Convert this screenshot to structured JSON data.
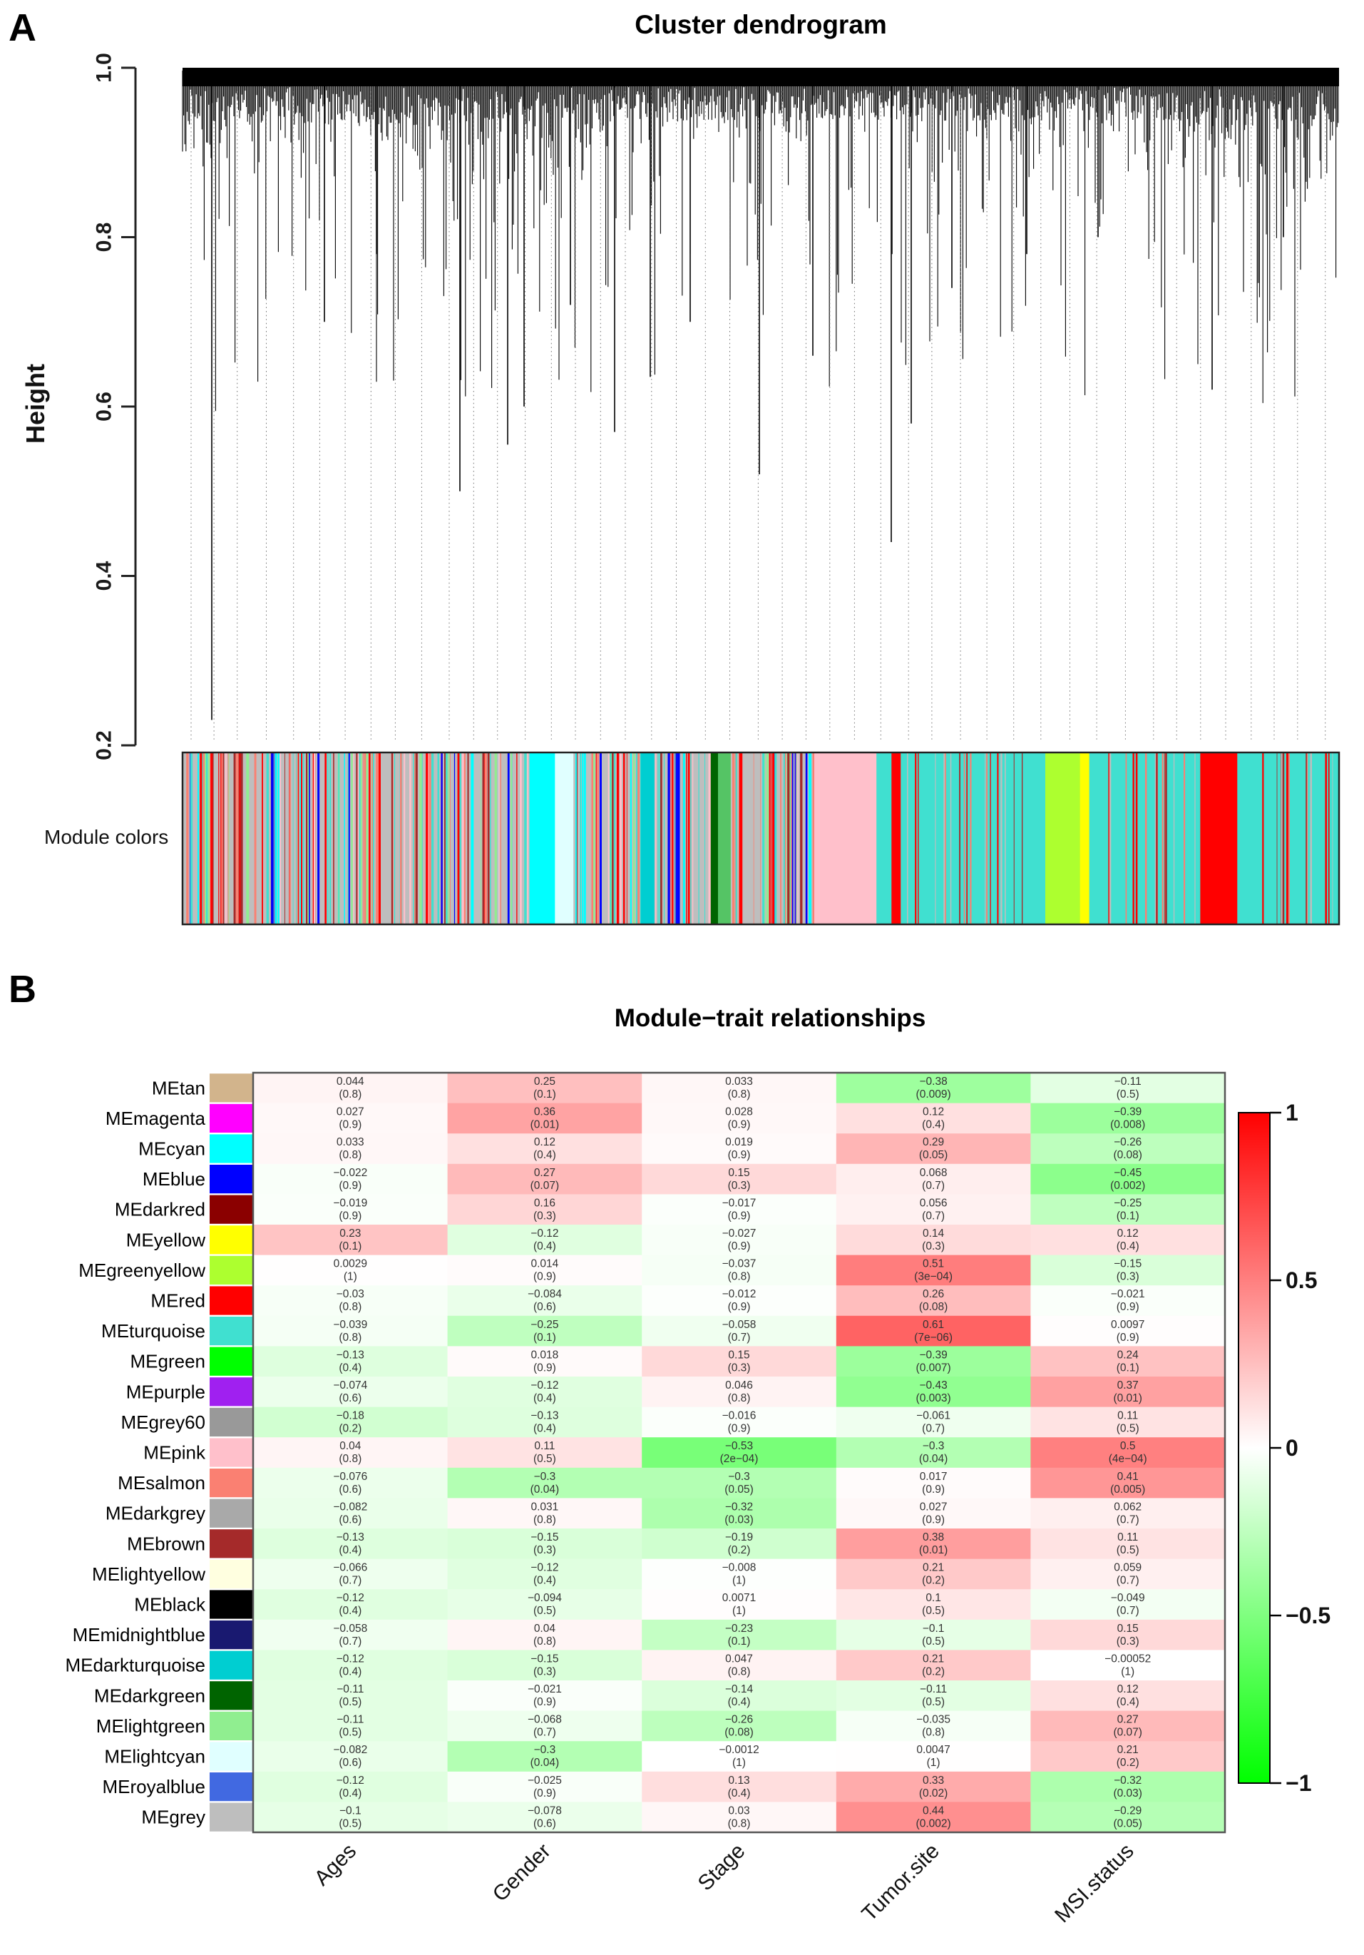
{
  "chart_data": [
    {
      "type": "dendrogram",
      "panel_label": "A",
      "title": "Cluster dendrogram",
      "ylabel": "Height",
      "ylim": [
        0.2,
        1.0
      ],
      "ytick_labels": [
        "1.0",
        "0.8",
        "0.6",
        "0.4",
        "0.2"
      ],
      "description": "Dense gene hierarchical-clustering tree; most merge heights lie between 0.85 and 1.0, deepest single branches reach about 0.23 and 0.44; dotted vertical leader lines extend to the 0.2 baseline.",
      "module_colors_bar": {
        "label": "Module colors",
        "segments": [
          {
            "from": 0.0,
            "to": 0.3,
            "color": "#BEBEBE"
          },
          {
            "from": 0.3,
            "to": 0.322,
            "color": "#00FFFF"
          },
          {
            "from": 0.322,
            "to": 0.338,
            "color": "#E0FFFF"
          },
          {
            "from": 0.338,
            "to": 0.396,
            "color": "#BEBEBE"
          },
          {
            "from": 0.396,
            "to": 0.408,
            "color": "#00CED1"
          },
          {
            "from": 0.408,
            "to": 0.455,
            "color": "#BEBEBE"
          },
          {
            "from": 0.455,
            "to": 0.463,
            "color": "#006400"
          },
          {
            "from": 0.463,
            "to": 0.474,
            "color": "#55C465"
          },
          {
            "from": 0.474,
            "to": 0.545,
            "color": "#BEBEBE"
          },
          {
            "from": 0.545,
            "to": 0.6,
            "color": "#FFC0CB"
          },
          {
            "from": 0.6,
            "to": 0.613,
            "color": "#40E0D0"
          },
          {
            "from": 0.613,
            "to": 0.621,
            "color": "#FF0000"
          },
          {
            "from": 0.621,
            "to": 0.746,
            "color": "#40E0D0"
          },
          {
            "from": 0.746,
            "to": 0.776,
            "color": "#ADFF2F"
          },
          {
            "from": 0.776,
            "to": 0.784,
            "color": "#FFFF00"
          },
          {
            "from": 0.784,
            "to": 0.88,
            "color": "#40E0D0"
          },
          {
            "from": 0.88,
            "to": 0.912,
            "color": "#FF0000"
          },
          {
            "from": 0.912,
            "to": 1.0,
            "color": "#40E0D0"
          }
        ]
      }
    },
    {
      "type": "heatmap",
      "panel_label": "B",
      "title": "Module−trait relationships",
      "categories": [
        "Ages",
        "Gender",
        "Stage",
        "Tumor.site",
        "MSI.status"
      ],
      "colorbar": {
        "max": 1,
        "min": -1,
        "tick_labels": [
          "1",
          "0.5",
          "0",
          "−0.5",
          "−1"
        ],
        "high": "#FF0000",
        "mid": "#FFFFFF",
        "low": "#00FF00"
      },
      "rows": [
        {
          "module": "MEtan",
          "swatch": "#D2B48C",
          "cells": [
            {
              "cor": "0.044",
              "p": "(0.8)"
            },
            {
              "cor": "0.25",
              "p": "(0.1)"
            },
            {
              "cor": "0.033",
              "p": "(0.8)"
            },
            {
              "cor": "−0.38",
              "p": "(0.009)"
            },
            {
              "cor": "−0.11",
              "p": "(0.5)"
            }
          ]
        },
        {
          "module": "MEmagenta",
          "swatch": "#FF00FF",
          "cells": [
            {
              "cor": "0.027",
              "p": "(0.9)"
            },
            {
              "cor": "0.36",
              "p": "(0.01)"
            },
            {
              "cor": "0.028",
              "p": "(0.9)"
            },
            {
              "cor": "0.12",
              "p": "(0.4)"
            },
            {
              "cor": "−0.39",
              "p": "(0.008)"
            }
          ]
        },
        {
          "module": "MEcyan",
          "swatch": "#00FFFF",
          "cells": [
            {
              "cor": "0.033",
              "p": "(0.8)"
            },
            {
              "cor": "0.12",
              "p": "(0.4)"
            },
            {
              "cor": "0.019",
              "p": "(0.9)"
            },
            {
              "cor": "0.29",
              "p": "(0.05)"
            },
            {
              "cor": "−0.26",
              "p": "(0.08)"
            }
          ]
        },
        {
          "module": "MEblue",
          "swatch": "#0000FF",
          "cells": [
            {
              "cor": "−0.022",
              "p": "(0.9)"
            },
            {
              "cor": "0.27",
              "p": "(0.07)"
            },
            {
              "cor": "0.15",
              "p": "(0.3)"
            },
            {
              "cor": "0.068",
              "p": "(0.7)"
            },
            {
              "cor": "−0.45",
              "p": "(0.002)"
            }
          ]
        },
        {
          "module": "MEdarkred",
          "swatch": "#8B0000",
          "cells": [
            {
              "cor": "−0.019",
              "p": "(0.9)"
            },
            {
              "cor": "0.16",
              "p": "(0.3)"
            },
            {
              "cor": "−0.017",
              "p": "(0.9)"
            },
            {
              "cor": "0.056",
              "p": "(0.7)"
            },
            {
              "cor": "−0.25",
              "p": "(0.1)"
            }
          ]
        },
        {
          "module": "MEyellow",
          "swatch": "#FFFF00",
          "cells": [
            {
              "cor": "0.23",
              "p": "(0.1)"
            },
            {
              "cor": "−0.12",
              "p": "(0.4)"
            },
            {
              "cor": "−0.027",
              "p": "(0.9)"
            },
            {
              "cor": "0.14",
              "p": "(0.3)"
            },
            {
              "cor": "0.12",
              "p": "(0.4)"
            }
          ]
        },
        {
          "module": "MEgreenyellow",
          "swatch": "#ADFF2F",
          "cells": [
            {
              "cor": "0.0029",
              "p": "(1)"
            },
            {
              "cor": "0.014",
              "p": "(0.9)"
            },
            {
              "cor": "−0.037",
              "p": "(0.8)"
            },
            {
              "cor": "0.51",
              "p": "(3e−04)"
            },
            {
              "cor": "−0.15",
              "p": "(0.3)"
            }
          ]
        },
        {
          "module": "MEred",
          "swatch": "#FF0000",
          "cells": [
            {
              "cor": "−0.03",
              "p": "(0.8)"
            },
            {
              "cor": "−0.084",
              "p": "(0.6)"
            },
            {
              "cor": "−0.012",
              "p": "(0.9)"
            },
            {
              "cor": "0.26",
              "p": "(0.08)"
            },
            {
              "cor": "−0.021",
              "p": "(0.9)"
            }
          ]
        },
        {
          "module": "MEturquoise",
          "swatch": "#40E0D0",
          "cells": [
            {
              "cor": "−0.039",
              "p": "(0.8)"
            },
            {
              "cor": "−0.25",
              "p": "(0.1)"
            },
            {
              "cor": "−0.058",
              "p": "(0.7)"
            },
            {
              "cor": "0.61",
              "p": "(7e−06)"
            },
            {
              "cor": "0.0097",
              "p": "(0.9)"
            }
          ]
        },
        {
          "module": "MEgreen",
          "swatch": "#00FF00",
          "cells": [
            {
              "cor": "−0.13",
              "p": "(0.4)"
            },
            {
              "cor": "0.018",
              "p": "(0.9)"
            },
            {
              "cor": "0.15",
              "p": "(0.3)"
            },
            {
              "cor": "−0.39",
              "p": "(0.007)"
            },
            {
              "cor": "0.24",
              "p": "(0.1)"
            }
          ]
        },
        {
          "module": "MEpurple",
          "swatch": "#A020F0",
          "cells": [
            {
              "cor": "−0.074",
              "p": "(0.6)"
            },
            {
              "cor": "−0.12",
              "p": "(0.4)"
            },
            {
              "cor": "0.046",
              "p": "(0.8)"
            },
            {
              "cor": "−0.43",
              "p": "(0.003)"
            },
            {
              "cor": "0.37",
              "p": "(0.01)"
            }
          ]
        },
        {
          "module": "MEgrey60",
          "swatch": "#999999",
          "cells": [
            {
              "cor": "−0.18",
              "p": "(0.2)"
            },
            {
              "cor": "−0.13",
              "p": "(0.4)"
            },
            {
              "cor": "−0.016",
              "p": "(0.9)"
            },
            {
              "cor": "−0.061",
              "p": "(0.7)"
            },
            {
              "cor": "0.11",
              "p": "(0.5)"
            }
          ]
        },
        {
          "module": "MEpink",
          "swatch": "#FFC0CB",
          "cells": [
            {
              "cor": "0.04",
              "p": "(0.8)"
            },
            {
              "cor": "0.11",
              "p": "(0.5)"
            },
            {
              "cor": "−0.53",
              "p": "(2e−04)"
            },
            {
              "cor": "−0.3",
              "p": "(0.04)"
            },
            {
              "cor": "0.5",
              "p": "(4e−04)"
            }
          ]
        },
        {
          "module": "MEsalmon",
          "swatch": "#FA8072",
          "cells": [
            {
              "cor": "−0.076",
              "p": "(0.6)"
            },
            {
              "cor": "−0.3",
              "p": "(0.04)"
            },
            {
              "cor": "−0.3",
              "p": "(0.05)"
            },
            {
              "cor": "0.017",
              "p": "(0.9)"
            },
            {
              "cor": "0.41",
              "p": "(0.005)"
            }
          ]
        },
        {
          "module": "MEdarkgrey",
          "swatch": "#A9A9A9",
          "cells": [
            {
              "cor": "−0.082",
              "p": "(0.6)"
            },
            {
              "cor": "0.031",
              "p": "(0.8)"
            },
            {
              "cor": "−0.32",
              "p": "(0.03)"
            },
            {
              "cor": "0.027",
              "p": "(0.9)"
            },
            {
              "cor": "0.062",
              "p": "(0.7)"
            }
          ]
        },
        {
          "module": "MEbrown",
          "swatch": "#A52A2A",
          "cells": [
            {
              "cor": "−0.13",
              "p": "(0.4)"
            },
            {
              "cor": "−0.15",
              "p": "(0.3)"
            },
            {
              "cor": "−0.19",
              "p": "(0.2)"
            },
            {
              "cor": "0.38",
              "p": "(0.01)"
            },
            {
              "cor": "0.11",
              "p": "(0.5)"
            }
          ]
        },
        {
          "module": "MElightyellow",
          "swatch": "#FFFFE0",
          "cells": [
            {
              "cor": "−0.066",
              "p": "(0.7)"
            },
            {
              "cor": "−0.12",
              "p": "(0.4)"
            },
            {
              "cor": "−0.008",
              "p": "(1)"
            },
            {
              "cor": "0.21",
              "p": "(0.2)"
            },
            {
              "cor": "0.059",
              "p": "(0.7)"
            }
          ]
        },
        {
          "module": "MEblack",
          "swatch": "#000000",
          "cells": [
            {
              "cor": "−0.12",
              "p": "(0.4)"
            },
            {
              "cor": "−0.094",
              "p": "(0.5)"
            },
            {
              "cor": "0.0071",
              "p": "(1)"
            },
            {
              "cor": "0.1",
              "p": "(0.5)"
            },
            {
              "cor": "−0.049",
              "p": "(0.7)"
            }
          ]
        },
        {
          "module": "MEmidnightblue",
          "swatch": "#191970",
          "cells": [
            {
              "cor": "−0.058",
              "p": "(0.7)"
            },
            {
              "cor": "0.04",
              "p": "(0.8)"
            },
            {
              "cor": "−0.23",
              "p": "(0.1)"
            },
            {
              "cor": "−0.1",
              "p": "(0.5)"
            },
            {
              "cor": "0.15",
              "p": "(0.3)"
            }
          ]
        },
        {
          "module": "MEdarkturquoise",
          "swatch": "#00CED1",
          "cells": [
            {
              "cor": "−0.12",
              "p": "(0.4)"
            },
            {
              "cor": "−0.15",
              "p": "(0.3)"
            },
            {
              "cor": "0.047",
              "p": "(0.8)"
            },
            {
              "cor": "0.21",
              "p": "(0.2)"
            },
            {
              "cor": "−0.00052",
              "p": "(1)"
            }
          ]
        },
        {
          "module": "MEdarkgreen",
          "swatch": "#006400",
          "cells": [
            {
              "cor": "−0.11",
              "p": "(0.5)"
            },
            {
              "cor": "−0.021",
              "p": "(0.9)"
            },
            {
              "cor": "−0.14",
              "p": "(0.4)"
            },
            {
              "cor": "−0.11",
              "p": "(0.5)"
            },
            {
              "cor": "0.12",
              "p": "(0.4)"
            }
          ]
        },
        {
          "module": "MElightgreen",
          "swatch": "#90EE90",
          "cells": [
            {
              "cor": "−0.11",
              "p": "(0.5)"
            },
            {
              "cor": "−0.068",
              "p": "(0.7)"
            },
            {
              "cor": "−0.26",
              "p": "(0.08)"
            },
            {
              "cor": "−0.035",
              "p": "(0.8)"
            },
            {
              "cor": "0.27",
              "p": "(0.07)"
            }
          ]
        },
        {
          "module": "MElightcyan",
          "swatch": "#E0FFFF",
          "cells": [
            {
              "cor": "−0.082",
              "p": "(0.6)"
            },
            {
              "cor": "−0.3",
              "p": "(0.04)"
            },
            {
              "cor": "−0.0012",
              "p": "(1)"
            },
            {
              "cor": "0.0047",
              "p": "(1)"
            },
            {
              "cor": "0.21",
              "p": "(0.2)"
            }
          ]
        },
        {
          "module": "MEroyalblue",
          "swatch": "#4169E1",
          "cells": [
            {
              "cor": "−0.12",
              "p": "(0.4)"
            },
            {
              "cor": "−0.025",
              "p": "(0.9)"
            },
            {
              "cor": "0.13",
              "p": "(0.4)"
            },
            {
              "cor": "0.33",
              "p": "(0.02)"
            },
            {
              "cor": "−0.32",
              "p": "(0.03)"
            }
          ]
        },
        {
          "module": "MEgrey",
          "swatch": "#BEBEBE",
          "cells": [
            {
              "cor": "−0.1",
              "p": "(0.5)"
            },
            {
              "cor": "−0.078",
              "p": "(0.6)"
            },
            {
              "cor": "0.03",
              "p": "(0.8)"
            },
            {
              "cor": "0.44",
              "p": "(0.002)"
            },
            {
              "cor": "−0.29",
              "p": "(0.05)"
            }
          ]
        }
      ]
    }
  ]
}
